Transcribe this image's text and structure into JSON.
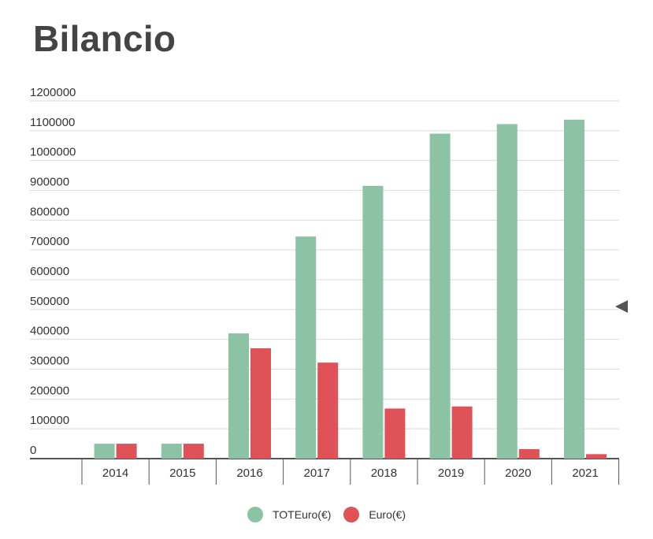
{
  "page_title": "Bilancio",
  "colors": {
    "series_1": "#8dc3a5",
    "series_2": "#de5258",
    "grid": "#d9d9d9",
    "axis": "#555555"
  },
  "icons": {
    "side_toggle": "triangle-left-icon"
  },
  "chart_data": {
    "type": "bar",
    "title": "Bilancio",
    "xlabel": "",
    "ylabel": "",
    "categories": [
      "2014",
      "2015",
      "2016",
      "2017",
      "2018",
      "2019",
      "2020",
      "2021"
    ],
    "series": [
      {
        "name": "TOTEuro(€)",
        "values": [
          50000,
          50000,
          420000,
          745000,
          915000,
          1090000,
          1122000,
          1137000
        ]
      },
      {
        "name": "Euro(€)",
        "values": [
          50000,
          50000,
          370000,
          322000,
          168000,
          175000,
          32000,
          15000
        ]
      }
    ],
    "ylim": [
      0,
      1200000
    ],
    "yticks": [
      "0",
      "100000",
      "200000",
      "300000",
      "400000",
      "500000",
      "600000",
      "700000",
      "800000",
      "900000",
      "1000000",
      "1100000",
      "1200000"
    ],
    "grid": true,
    "legend_position": "bottom"
  }
}
